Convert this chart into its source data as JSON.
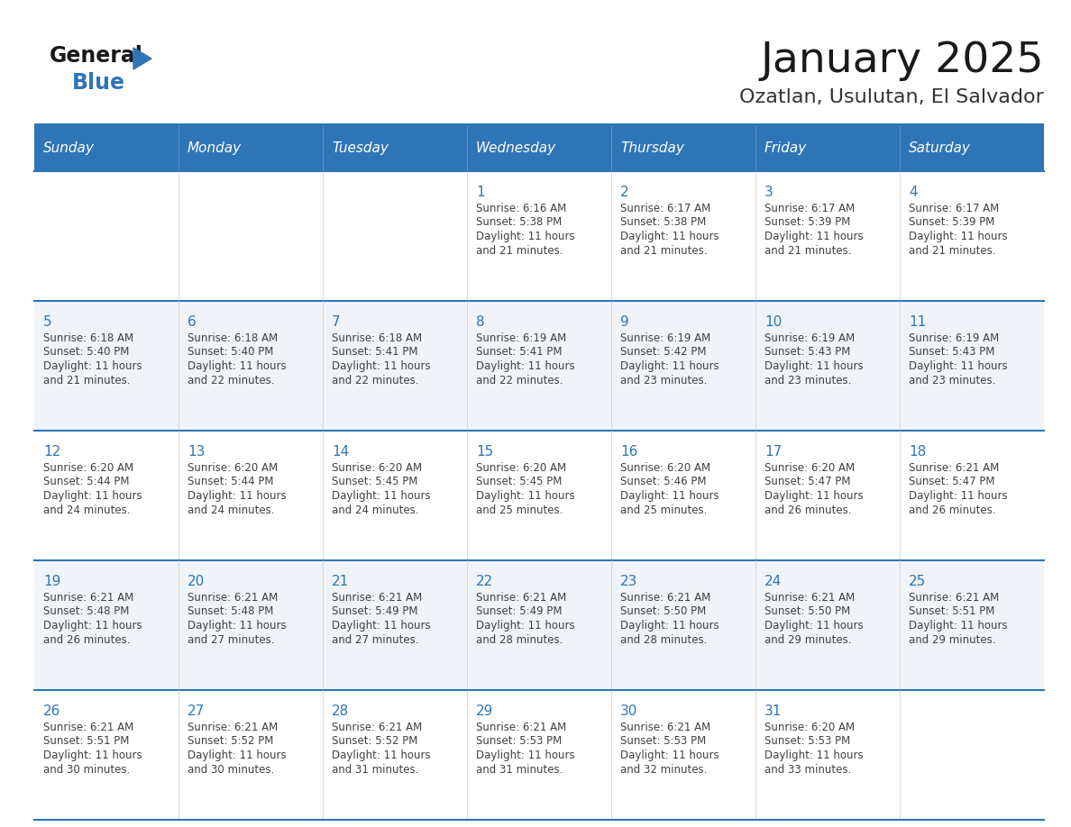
{
  "title": "January 2025",
  "subtitle": "Ozatlan, Usulutan, El Salvador",
  "days_of_week": [
    "Sunday",
    "Monday",
    "Tuesday",
    "Wednesday",
    "Thursday",
    "Friday",
    "Saturday"
  ],
  "header_bg_color": "#2E75B6",
  "header_text_color": "#FFFFFF",
  "row_bg_color_even": "#FFFFFF",
  "row_bg_color_odd": "#F0F4F8",
  "cell_border_color": "#2E75B6",
  "day_number_color": "#2E75B6",
  "cell_text_color": "#404040",
  "title_color": "#1a1a1a",
  "subtitle_color": "#333333",
  "logo_general_color": "#1a1a1a",
  "logo_blue_color": "#2E75B6",
  "calendar": [
    [
      null,
      null,
      null,
      {
        "day": 1,
        "sunrise": "6:16 AM",
        "sunset": "5:38 PM",
        "daylight_line1": "11 hours",
        "daylight_line2": "and 21 minutes."
      },
      {
        "day": 2,
        "sunrise": "6:17 AM",
        "sunset": "5:38 PM",
        "daylight_line1": "11 hours",
        "daylight_line2": "and 21 minutes."
      },
      {
        "day": 3,
        "sunrise": "6:17 AM",
        "sunset": "5:39 PM",
        "daylight_line1": "11 hours",
        "daylight_line2": "and 21 minutes."
      },
      {
        "day": 4,
        "sunrise": "6:17 AM",
        "sunset": "5:39 PM",
        "daylight_line1": "11 hours",
        "daylight_line2": "and 21 minutes."
      }
    ],
    [
      {
        "day": 5,
        "sunrise": "6:18 AM",
        "sunset": "5:40 PM",
        "daylight_line1": "11 hours",
        "daylight_line2": "and 21 minutes."
      },
      {
        "day": 6,
        "sunrise": "6:18 AM",
        "sunset": "5:40 PM",
        "daylight_line1": "11 hours",
        "daylight_line2": "and 22 minutes."
      },
      {
        "day": 7,
        "sunrise": "6:18 AM",
        "sunset": "5:41 PM",
        "daylight_line1": "11 hours",
        "daylight_line2": "and 22 minutes."
      },
      {
        "day": 8,
        "sunrise": "6:19 AM",
        "sunset": "5:41 PM",
        "daylight_line1": "11 hours",
        "daylight_line2": "and 22 minutes."
      },
      {
        "day": 9,
        "sunrise": "6:19 AM",
        "sunset": "5:42 PM",
        "daylight_line1": "11 hours",
        "daylight_line2": "and 23 minutes."
      },
      {
        "day": 10,
        "sunrise": "6:19 AM",
        "sunset": "5:43 PM",
        "daylight_line1": "11 hours",
        "daylight_line2": "and 23 minutes."
      },
      {
        "day": 11,
        "sunrise": "6:19 AM",
        "sunset": "5:43 PM",
        "daylight_line1": "11 hours",
        "daylight_line2": "and 23 minutes."
      }
    ],
    [
      {
        "day": 12,
        "sunrise": "6:20 AM",
        "sunset": "5:44 PM",
        "daylight_line1": "11 hours",
        "daylight_line2": "and 24 minutes."
      },
      {
        "day": 13,
        "sunrise": "6:20 AM",
        "sunset": "5:44 PM",
        "daylight_line1": "11 hours",
        "daylight_line2": "and 24 minutes."
      },
      {
        "day": 14,
        "sunrise": "6:20 AM",
        "sunset": "5:45 PM",
        "daylight_line1": "11 hours",
        "daylight_line2": "and 24 minutes."
      },
      {
        "day": 15,
        "sunrise": "6:20 AM",
        "sunset": "5:45 PM",
        "daylight_line1": "11 hours",
        "daylight_line2": "and 25 minutes."
      },
      {
        "day": 16,
        "sunrise": "6:20 AM",
        "sunset": "5:46 PM",
        "daylight_line1": "11 hours",
        "daylight_line2": "and 25 minutes."
      },
      {
        "day": 17,
        "sunrise": "6:20 AM",
        "sunset": "5:47 PM",
        "daylight_line1": "11 hours",
        "daylight_line2": "and 26 minutes."
      },
      {
        "day": 18,
        "sunrise": "6:21 AM",
        "sunset": "5:47 PM",
        "daylight_line1": "11 hours",
        "daylight_line2": "and 26 minutes."
      }
    ],
    [
      {
        "day": 19,
        "sunrise": "6:21 AM",
        "sunset": "5:48 PM",
        "daylight_line1": "11 hours",
        "daylight_line2": "and 26 minutes."
      },
      {
        "day": 20,
        "sunrise": "6:21 AM",
        "sunset": "5:48 PM",
        "daylight_line1": "11 hours",
        "daylight_line2": "and 27 minutes."
      },
      {
        "day": 21,
        "sunrise": "6:21 AM",
        "sunset": "5:49 PM",
        "daylight_line1": "11 hours",
        "daylight_line2": "and 27 minutes."
      },
      {
        "day": 22,
        "sunrise": "6:21 AM",
        "sunset": "5:49 PM",
        "daylight_line1": "11 hours",
        "daylight_line2": "and 28 minutes."
      },
      {
        "day": 23,
        "sunrise": "6:21 AM",
        "sunset": "5:50 PM",
        "daylight_line1": "11 hours",
        "daylight_line2": "and 28 minutes."
      },
      {
        "day": 24,
        "sunrise": "6:21 AM",
        "sunset": "5:50 PM",
        "daylight_line1": "11 hours",
        "daylight_line2": "and 29 minutes."
      },
      {
        "day": 25,
        "sunrise": "6:21 AM",
        "sunset": "5:51 PM",
        "daylight_line1": "11 hours",
        "daylight_line2": "and 29 minutes."
      }
    ],
    [
      {
        "day": 26,
        "sunrise": "6:21 AM",
        "sunset": "5:51 PM",
        "daylight_line1": "11 hours",
        "daylight_line2": "and 30 minutes."
      },
      {
        "day": 27,
        "sunrise": "6:21 AM",
        "sunset": "5:52 PM",
        "daylight_line1": "11 hours",
        "daylight_line2": "and 30 minutes."
      },
      {
        "day": 28,
        "sunrise": "6:21 AM",
        "sunset": "5:52 PM",
        "daylight_line1": "11 hours",
        "daylight_line2": "and 31 minutes."
      },
      {
        "day": 29,
        "sunrise": "6:21 AM",
        "sunset": "5:53 PM",
        "daylight_line1": "11 hours",
        "daylight_line2": "and 31 minutes."
      },
      {
        "day": 30,
        "sunrise": "6:21 AM",
        "sunset": "5:53 PM",
        "daylight_line1": "11 hours",
        "daylight_line2": "and 32 minutes."
      },
      {
        "day": 31,
        "sunrise": "6:20 AM",
        "sunset": "5:53 PM",
        "daylight_line1": "11 hours",
        "daylight_line2": "and 33 minutes."
      },
      null
    ]
  ]
}
